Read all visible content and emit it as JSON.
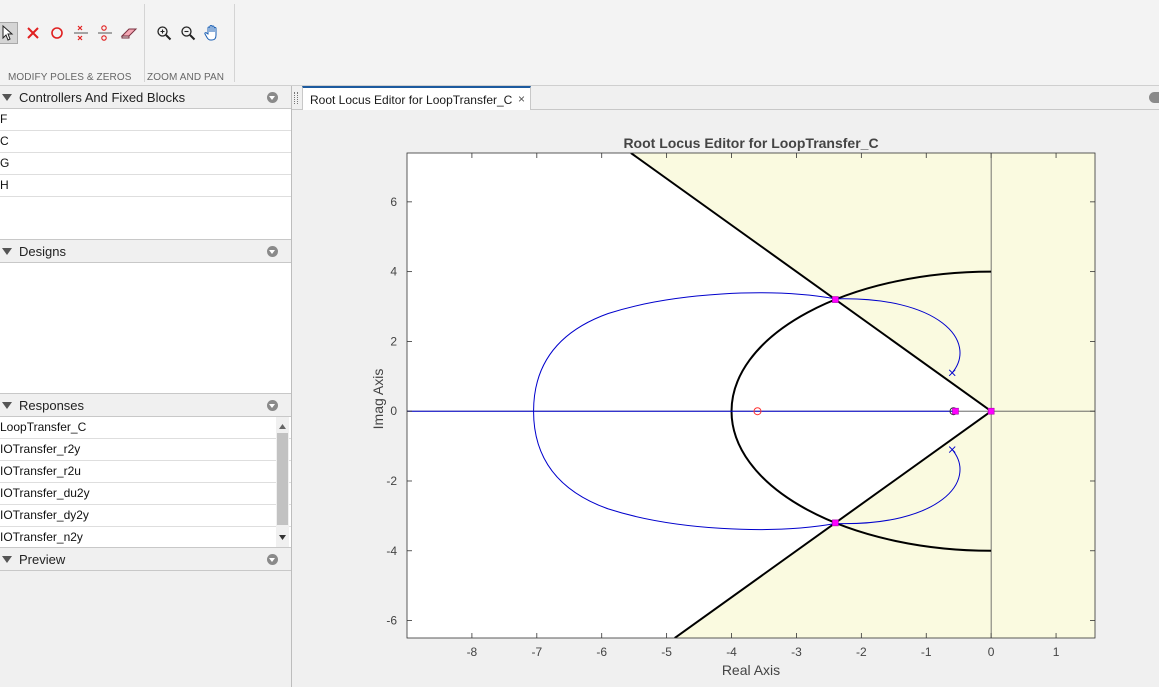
{
  "toolstrip": {
    "modify_section_label": "MODIFY POLES & ZEROS",
    "zoom_section_label": "ZOOM AND PAN",
    "modify_tools": [
      "select-arrow-icon",
      "delete-pole-icon",
      "add-zero-icon",
      "add-complex-pole-icon",
      "add-complex-zero-icon",
      "eraser-icon"
    ],
    "zoom_tools": [
      "zoom-in-icon",
      "zoom-out-icon",
      "pan-hand-icon"
    ]
  },
  "panels": {
    "controllers": {
      "title": "Controllers And Fixed Blocks",
      "items": [
        "F",
        "C",
        "G",
        "H"
      ]
    },
    "designs": {
      "title": "Designs",
      "items": []
    },
    "responses": {
      "title": "Responses",
      "items": [
        "LoopTransfer_C",
        "IOTransfer_r2y",
        "IOTransfer_r2u",
        "IOTransfer_du2y",
        "IOTransfer_dy2y",
        "IOTransfer_n2y"
      ]
    },
    "preview": {
      "title": "Preview"
    }
  },
  "document": {
    "tab_label": "Root Locus Editor for LoopTransfer_C",
    "tab_close": "×"
  },
  "colors": {
    "locus": "#0000cc",
    "constraint": "#000000",
    "region": "#fafae0",
    "closed_loop_marker": "#ff00ff",
    "zero_marker": "#ff3333"
  },
  "chart_data": {
    "type": "scatter",
    "title": "Root Locus Editor for LoopTransfer_C",
    "xlabel": "Real Axis",
    "ylabel": "Imag Axis",
    "xlim": [
      -9,
      1.6
    ],
    "ylim": [
      -6.5,
      7.4
    ],
    "xticks": [
      -8,
      -7,
      -6,
      -5,
      -4,
      -3,
      -2,
      -1,
      0,
      1
    ],
    "yticks": [
      -6,
      -4,
      -2,
      0,
      2,
      4,
      6
    ],
    "grid": false,
    "open_loop_poles": [
      [
        0,
        0
      ],
      [
        -0.55,
        0
      ],
      [
        -0.6,
        1.1
      ],
      [
        -0.6,
        -1.1
      ]
    ],
    "open_loop_zeros": [
      [
        -3.6,
        0
      ],
      [
        -0.58,
        0
      ]
    ],
    "closed_loop_poles": [
      [
        -2.4,
        3.2
      ],
      [
        -2.4,
        -3.2
      ],
      [
        -0.55,
        0
      ],
      [
        0,
        0
      ]
    ],
    "damping_ratio_constraint": 0.6,
    "natural_frequency_constraint": 4,
    "locus_circle": {
      "center": [
        -3.6,
        0
      ],
      "radius": 3.45
    }
  }
}
